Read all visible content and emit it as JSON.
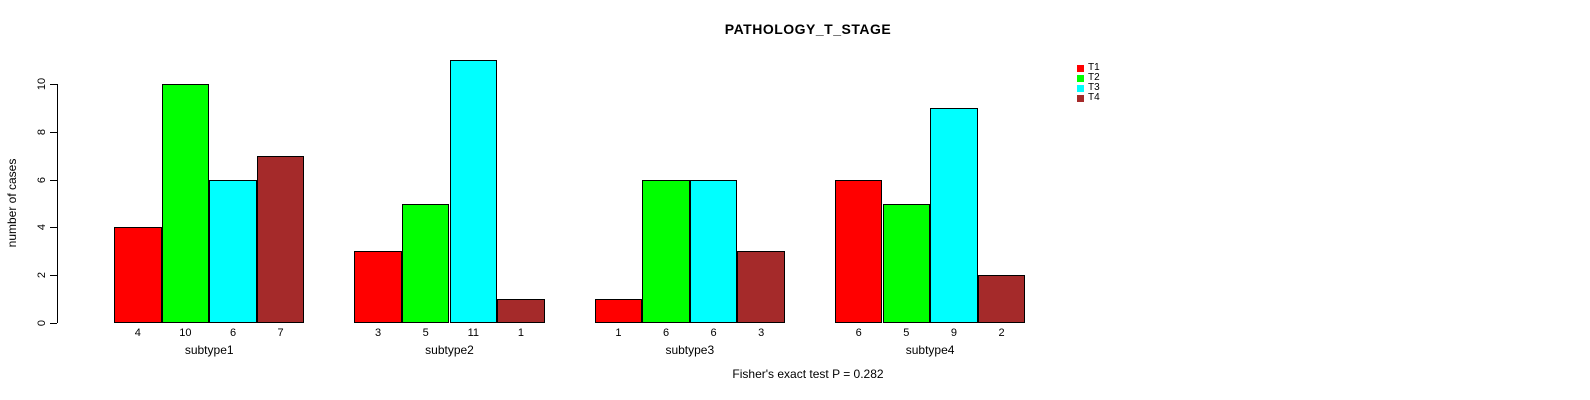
{
  "title": "PATHOLOGY_T_STAGE",
  "chart_data": {
    "type": "bar",
    "grouped": true,
    "title": "PATHOLOGY_T_STAGE",
    "xlabel": "",
    "ylabel": "number of cases",
    "categories": [
      "subtype1",
      "subtype2",
      "subtype3",
      "subtype4"
    ],
    "series": [
      {
        "name": "T1",
        "color": "#ff0000",
        "values": [
          4,
          3,
          1,
          6
        ]
      },
      {
        "name": "T2",
        "color": "#00ff00",
        "values": [
          10,
          5,
          6,
          5
        ]
      },
      {
        "name": "T3",
        "color": "#00ffff",
        "values": [
          6,
          11,
          6,
          9
        ]
      },
      {
        "name": "T4",
        "color": "#a52a2a",
        "values": [
          7,
          1,
          3,
          2
        ]
      }
    ],
    "bar_value_labels": [
      [
        4,
        10,
        6,
        7
      ],
      [
        3,
        5,
        11,
        1
      ],
      [
        1,
        6,
        6,
        3
      ],
      [
        6,
        5,
        9,
        2
      ]
    ],
    "yticks": [
      0,
      2,
      4,
      6,
      8,
      10
    ],
    "ylim": [
      0,
      11
    ],
    "grid": false,
    "legend": {
      "position": "topright",
      "labels": [
        "T1",
        "T2",
        "T3",
        "T4"
      ]
    },
    "annotation": "Fisher's exact test P = 0.282",
    "axis_color": "#000000",
    "bar_border_color": "#000000"
  }
}
